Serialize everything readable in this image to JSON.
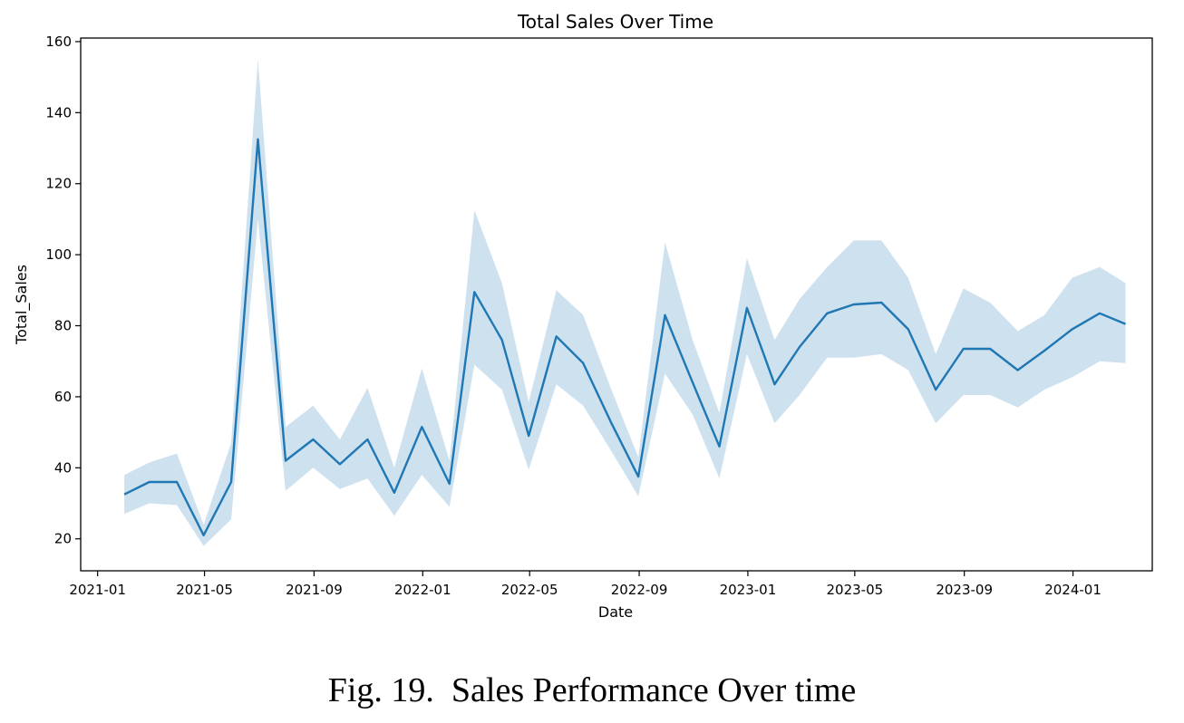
{
  "chart_data": {
    "type": "line",
    "title": "Total Sales Over Time",
    "xlabel": "Date",
    "ylabel": "Total_Sales",
    "x_ticks": [
      "2021-01",
      "2021-05",
      "2021-09",
      "2022-01",
      "2022-05",
      "2022-09",
      "2023-01",
      "2023-05",
      "2023-09",
      "2024-01"
    ],
    "y_ticks": [
      20,
      40,
      60,
      80,
      100,
      120,
      140,
      160
    ],
    "xlim": [
      "2020-12-13",
      "2024-03-30"
    ],
    "ylim": [
      11,
      161
    ],
    "grid": false,
    "series": [
      {
        "color": "#1f77b4",
        "band_color": "#1f77b4",
        "x": [
          "2021-01-31",
          "2021-02-28",
          "2021-03-31",
          "2021-04-30",
          "2021-05-31",
          "2021-06-30",
          "2021-07-31",
          "2021-08-31",
          "2021-09-30",
          "2021-10-31",
          "2021-11-30",
          "2021-12-31",
          "2022-01-31",
          "2022-02-28",
          "2022-03-31",
          "2022-04-30",
          "2022-05-31",
          "2022-06-30",
          "2022-07-31",
          "2022-08-31",
          "2022-09-30",
          "2022-10-31",
          "2022-11-30",
          "2022-12-31",
          "2023-01-31",
          "2023-02-28",
          "2023-03-31",
          "2023-04-30",
          "2023-05-31",
          "2023-06-30",
          "2023-07-31",
          "2023-08-31",
          "2023-09-30",
          "2023-10-31",
          "2023-11-30",
          "2023-12-31",
          "2024-01-31",
          "2024-02-29"
        ],
        "values": [
          32.5,
          36,
          36,
          21,
          36,
          132.5,
          42,
          48,
          41,
          48,
          33,
          51.5,
          35.5,
          89.5,
          76,
          49,
          77,
          69.5,
          53,
          37.5,
          83,
          64,
          46,
          85,
          63.5,
          74,
          83.5,
          86,
          86.5,
          79,
          62,
          73.5,
          73.5,
          67.5,
          73,
          79,
          83.5,
          80.5
        ],
        "lower": [
          27,
          30,
          29.5,
          18,
          25.5,
          110,
          33.5,
          40,
          34,
          37,
          26.5,
          38,
          29,
          69,
          62,
          39.5,
          63.5,
          57.5,
          45,
          32,
          66.5,
          55,
          37,
          72,
          52.5,
          60.5,
          71,
          71,
          72,
          67.5,
          52.5,
          60.5,
          60.5,
          57,
          62,
          65.5,
          70,
          69.5
        ],
        "upper": [
          38,
          41.5,
          44,
          24,
          47,
          155,
          51.5,
          57.5,
          48,
          62.5,
          40,
          68,
          42,
          112.5,
          92,
          58.5,
          90,
          83,
          62.5,
          43,
          103.5,
          76,
          55.5,
          99,
          76,
          87.5,
          96.5,
          104,
          104,
          93.5,
          72,
          90.5,
          86.5,
          78.5,
          83,
          93.5,
          96.5,
          92
        ]
      }
    ]
  },
  "caption": "Fig. 19.  Sales Performance Over time"
}
